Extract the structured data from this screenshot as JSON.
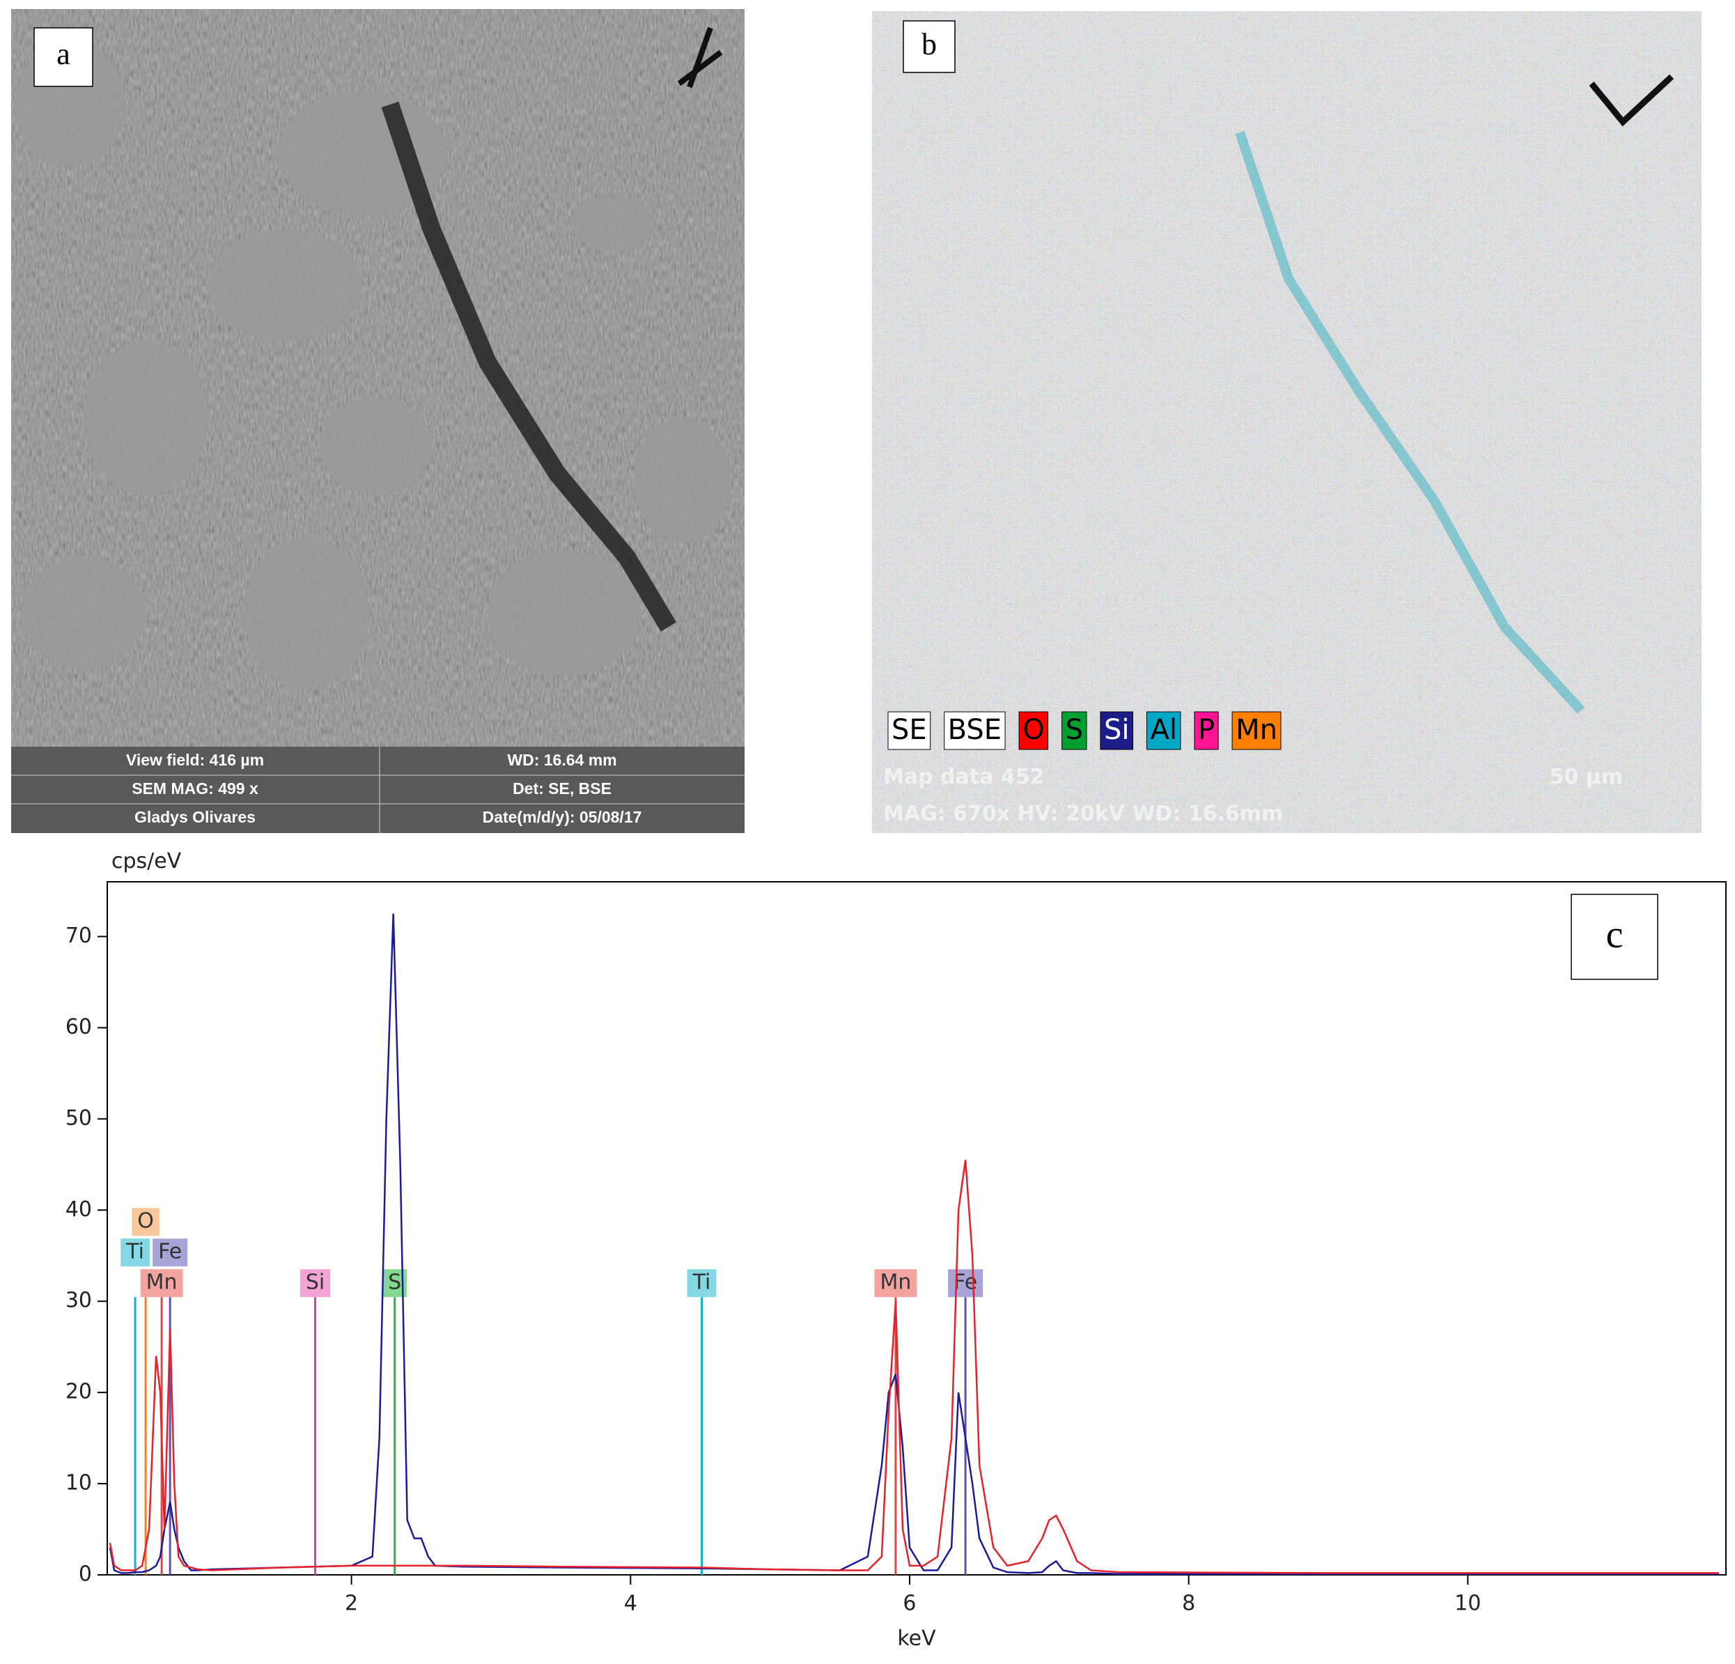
{
  "panel_a": {
    "label": "a",
    "info": [
      [
        "View field: 416 µm",
        "WD: 16.64 mm"
      ],
      [
        "SEM MAG: 499 x",
        "Det: SE, BSE"
      ],
      [
        "Gladys Olivares",
        "Date(m/d/y): 05/08/17"
      ]
    ]
  },
  "panel_b": {
    "label": "b",
    "legend": [
      {
        "text": "SE",
        "color": "#ffffff",
        "text_color": "#000000"
      },
      {
        "text": "BSE",
        "color": "#ffffff",
        "text_color": "#000000"
      },
      {
        "text": "O",
        "color": "#ff0000",
        "text_color": "#000000"
      },
      {
        "text": "S",
        "color": "#00a030",
        "text_color": "#000000"
      },
      {
        "text": "Si",
        "color": "#1c1c8a",
        "text_color": "#ffffff"
      },
      {
        "text": "Al",
        "color": "#00a8c8",
        "text_color": "#000000"
      },
      {
        "text": "P",
        "color": "#ff1493",
        "text_color": "#000000"
      },
      {
        "text": "Mn",
        "color": "#ff8000",
        "text_color": "#000000"
      }
    ],
    "overlay": [
      "Map data 452",
      "50 µm",
      "MAG: 670x HV: 20kV WD: 16.6mm"
    ]
  },
  "chart_data": {
    "type": "line",
    "label": "c",
    "y_label": "cps/eV",
    "x_label": "keV",
    "xlim": [
      0.25,
      11.85
    ],
    "ylim": [
      0,
      76
    ],
    "xticks": [
      2,
      4,
      6,
      8,
      10
    ],
    "yticks": [
      0,
      10,
      20,
      30,
      40,
      50,
      60,
      70
    ],
    "x": [
      0.27,
      0.3,
      0.35,
      0.4,
      0.45,
      0.5,
      0.55,
      0.6,
      0.63,
      0.66,
      0.7,
      0.73,
      0.76,
      0.8,
      0.85,
      0.9,
      1.0,
      1.5,
      2.0,
      2.15,
      2.2,
      2.25,
      2.3,
      2.35,
      2.4,
      2.45,
      2.5,
      2.55,
      2.6,
      2.8,
      3.5,
      4.5,
      5.0,
      5.5,
      5.7,
      5.8,
      5.85,
      5.9,
      5.95,
      6.0,
      6.1,
      6.2,
      6.3,
      6.35,
      6.4,
      6.45,
      6.5,
      6.6,
      6.7,
      6.85,
      6.95,
      7.0,
      7.05,
      7.1,
      7.2,
      7.3,
      7.5,
      9,
      11.8
    ],
    "series": [
      {
        "color": "#1a1a9a",
        "values": [
          3,
          0.5,
          0.2,
          0.2,
          0.3,
          0.3,
          0.5,
          1,
          2,
          5,
          8,
          5,
          3,
          1.5,
          0.5,
          0.5,
          0.6,
          0.8,
          1,
          2,
          15,
          50,
          72.5,
          45,
          6,
          4,
          4,
          2,
          1,
          0.9,
          0.8,
          0.7,
          0.6,
          0.5,
          2,
          12,
          20,
          22,
          14,
          3,
          0.5,
          0.5,
          3,
          20,
          15,
          10,
          4,
          0.8,
          0.3,
          0.2,
          0.3,
          1,
          1.5,
          0.5,
          0.2,
          0.2,
          0.1,
          0.1,
          0.1
        ]
      },
      {
        "color": "#e8202a",
        "values": [
          3.5,
          1,
          0.5,
          0.5,
          0.5,
          1,
          5,
          24,
          20,
          5,
          27,
          10,
          2,
          1,
          0.8,
          0.6,
          0.5,
          0.8,
          1,
          1,
          1,
          1,
          1,
          1,
          1,
          1,
          1,
          1,
          1,
          1,
          0.9,
          0.8,
          0.6,
          0.5,
          0.5,
          2,
          18,
          30,
          5,
          1,
          1,
          2,
          15,
          40,
          45.5,
          35,
          12,
          3,
          1,
          1.5,
          4,
          6,
          6.5,
          5,
          1.5,
          0.5,
          0.3,
          0.2,
          0.2
        ]
      }
    ],
    "markers": [
      {
        "label": "Mn",
        "x": 0.64,
        "color": "#e04848",
        "label_color": "#f4a4a0"
      },
      {
        "label": "Ti",
        "x": 0.45,
        "color": "#10b4cc",
        "label_color": "#84d8e4"
      },
      {
        "label": "Fe",
        "x": 0.7,
        "color": "#6050b0",
        "label_color": "#a8a4d8"
      },
      {
        "label": "O",
        "x": 0.525,
        "color": "#f08020",
        "label_color": "#f8c89c"
      },
      {
        "label": "Si",
        "x": 1.74,
        "color": "#e040a0",
        "label_color": "#f4a4d4"
      },
      {
        "label": "S",
        "x": 2.31,
        "color": "#30b040",
        "label_color": "#84d890"
      },
      {
        "label": "Ti",
        "x": 4.51,
        "color": "#10b4cc",
        "label_color": "#84d8e4"
      },
      {
        "label": "Mn",
        "x": 5.9,
        "color": "#e04848",
        "label_color": "#f4a4a0"
      },
      {
        "label": "Fe",
        "x": 6.4,
        "color": "#6050b0",
        "label_color": "#a8a4d8"
      }
    ]
  }
}
